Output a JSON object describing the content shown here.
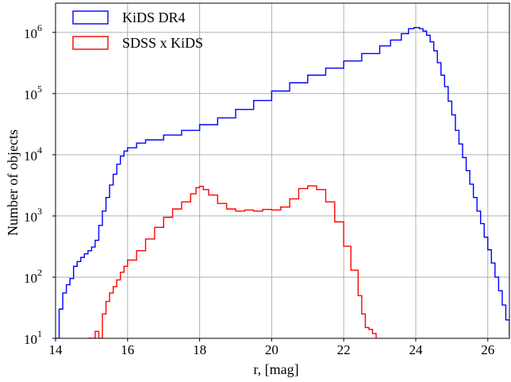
{
  "chart_data": {
    "type": "line",
    "step_histogram": true,
    "xlabel": "r, [mag]",
    "ylabel": "Number of objects",
    "xlim": [
      14.0,
      26.6
    ],
    "ylim": [
      10,
      3000000
    ],
    "yscale": "log",
    "grid": true,
    "legend_position": "top-left",
    "x_ticks": [
      {
        "value": 14,
        "label": "14"
      },
      {
        "value": 16,
        "label": "16"
      },
      {
        "value": 18,
        "label": "18"
      },
      {
        "value": 20,
        "label": "20"
      },
      {
        "value": 22,
        "label": "22"
      },
      {
        "value": 24,
        "label": "24"
      },
      {
        "value": 26,
        "label": "26"
      }
    ],
    "y_ticks": [
      {
        "value": 10,
        "base": "10",
        "exp": "1"
      },
      {
        "value": 100,
        "base": "10",
        "exp": "2"
      },
      {
        "value": 1000,
        "base": "10",
        "exp": "3"
      },
      {
        "value": 10000,
        "base": "10",
        "exp": "4"
      },
      {
        "value": 100000,
        "base": "10",
        "exp": "5"
      },
      {
        "value": 1000000,
        "base": "10",
        "exp": "6"
      }
    ],
    "series": [
      {
        "name": "KiDS DR4",
        "color": "#0000ff",
        "points": [
          [
            14.0,
            10
          ],
          [
            14.1,
            30
          ],
          [
            14.2,
            55
          ],
          [
            14.3,
            75
          ],
          [
            14.4,
            95
          ],
          [
            14.5,
            150
          ],
          [
            14.6,
            180
          ],
          [
            14.7,
            210
          ],
          [
            14.8,
            240
          ],
          [
            14.9,
            270
          ],
          [
            15.0,
            310
          ],
          [
            15.1,
            400
          ],
          [
            15.2,
            700
          ],
          [
            15.3,
            1200
          ],
          [
            15.4,
            2000
          ],
          [
            15.5,
            3200
          ],
          [
            15.6,
            4800
          ],
          [
            15.7,
            7000
          ],
          [
            15.8,
            9500
          ],
          [
            15.9,
            11500
          ],
          [
            16.0,
            13000
          ],
          [
            16.25,
            15500
          ],
          [
            16.5,
            17500
          ],
          [
            17.0,
            21000
          ],
          [
            17.5,
            25000
          ],
          [
            18.0,
            31000
          ],
          [
            18.5,
            40000
          ],
          [
            19.0,
            55000
          ],
          [
            19.5,
            77000
          ],
          [
            20.0,
            110000
          ],
          [
            20.5,
            150000
          ],
          [
            21.0,
            200000
          ],
          [
            21.5,
            260000
          ],
          [
            22.0,
            340000
          ],
          [
            22.5,
            450000
          ],
          [
            23.0,
            600000
          ],
          [
            23.3,
            750000
          ],
          [
            23.6,
            950000
          ],
          [
            23.8,
            1150000
          ],
          [
            23.95,
            1200000
          ],
          [
            24.1,
            1150000
          ],
          [
            24.2,
            1050000
          ],
          [
            24.3,
            900000
          ],
          [
            24.4,
            700000
          ],
          [
            24.5,
            500000
          ],
          [
            24.6,
            320000
          ],
          [
            24.7,
            200000
          ],
          [
            24.8,
            130000
          ],
          [
            24.9,
            75000
          ],
          [
            25.0,
            45000
          ],
          [
            25.1,
            25000
          ],
          [
            25.2,
            15000
          ],
          [
            25.3,
            9000
          ],
          [
            25.4,
            5500
          ],
          [
            25.5,
            3300
          ],
          [
            25.6,
            2000
          ],
          [
            25.7,
            1200
          ],
          [
            25.8,
            750
          ],
          [
            25.9,
            450
          ],
          [
            26.0,
            280
          ],
          [
            26.1,
            170
          ],
          [
            26.2,
            100
          ],
          [
            26.3,
            60
          ],
          [
            26.4,
            35
          ],
          [
            26.5,
            20
          ],
          [
            26.6,
            11
          ]
        ]
      },
      {
        "name": "SDSS x KiDS",
        "color": "#ff0000",
        "points": [
          [
            14.9,
            10
          ],
          [
            15.0,
            10
          ],
          [
            15.1,
            13
          ],
          [
            15.2,
            10
          ],
          [
            15.3,
            25
          ],
          [
            15.4,
            40
          ],
          [
            15.5,
            55
          ],
          [
            15.6,
            70
          ],
          [
            15.7,
            90
          ],
          [
            15.8,
            120
          ],
          [
            15.9,
            150
          ],
          [
            16.0,
            190
          ],
          [
            16.25,
            270
          ],
          [
            16.5,
            420
          ],
          [
            16.75,
            650
          ],
          [
            17.0,
            950
          ],
          [
            17.25,
            1300
          ],
          [
            17.5,
            1700
          ],
          [
            17.75,
            2300
          ],
          [
            17.9,
            2900
          ],
          [
            18.0,
            3050
          ],
          [
            18.1,
            2700
          ],
          [
            18.25,
            2200
          ],
          [
            18.5,
            1600
          ],
          [
            18.75,
            1300
          ],
          [
            19.0,
            1200
          ],
          [
            19.25,
            1250
          ],
          [
            19.5,
            1200
          ],
          [
            19.75,
            1280
          ],
          [
            20.0,
            1250
          ],
          [
            20.25,
            1400
          ],
          [
            20.5,
            1900
          ],
          [
            20.75,
            2800
          ],
          [
            21.0,
            3100
          ],
          [
            21.25,
            2700
          ],
          [
            21.5,
            1700
          ],
          [
            21.75,
            800
          ],
          [
            22.0,
            320
          ],
          [
            22.2,
            130
          ],
          [
            22.4,
            50
          ],
          [
            22.5,
            25
          ],
          [
            22.6,
            15
          ],
          [
            22.7,
            14
          ],
          [
            22.8,
            12
          ],
          [
            22.9,
            10
          ]
        ]
      }
    ]
  }
}
